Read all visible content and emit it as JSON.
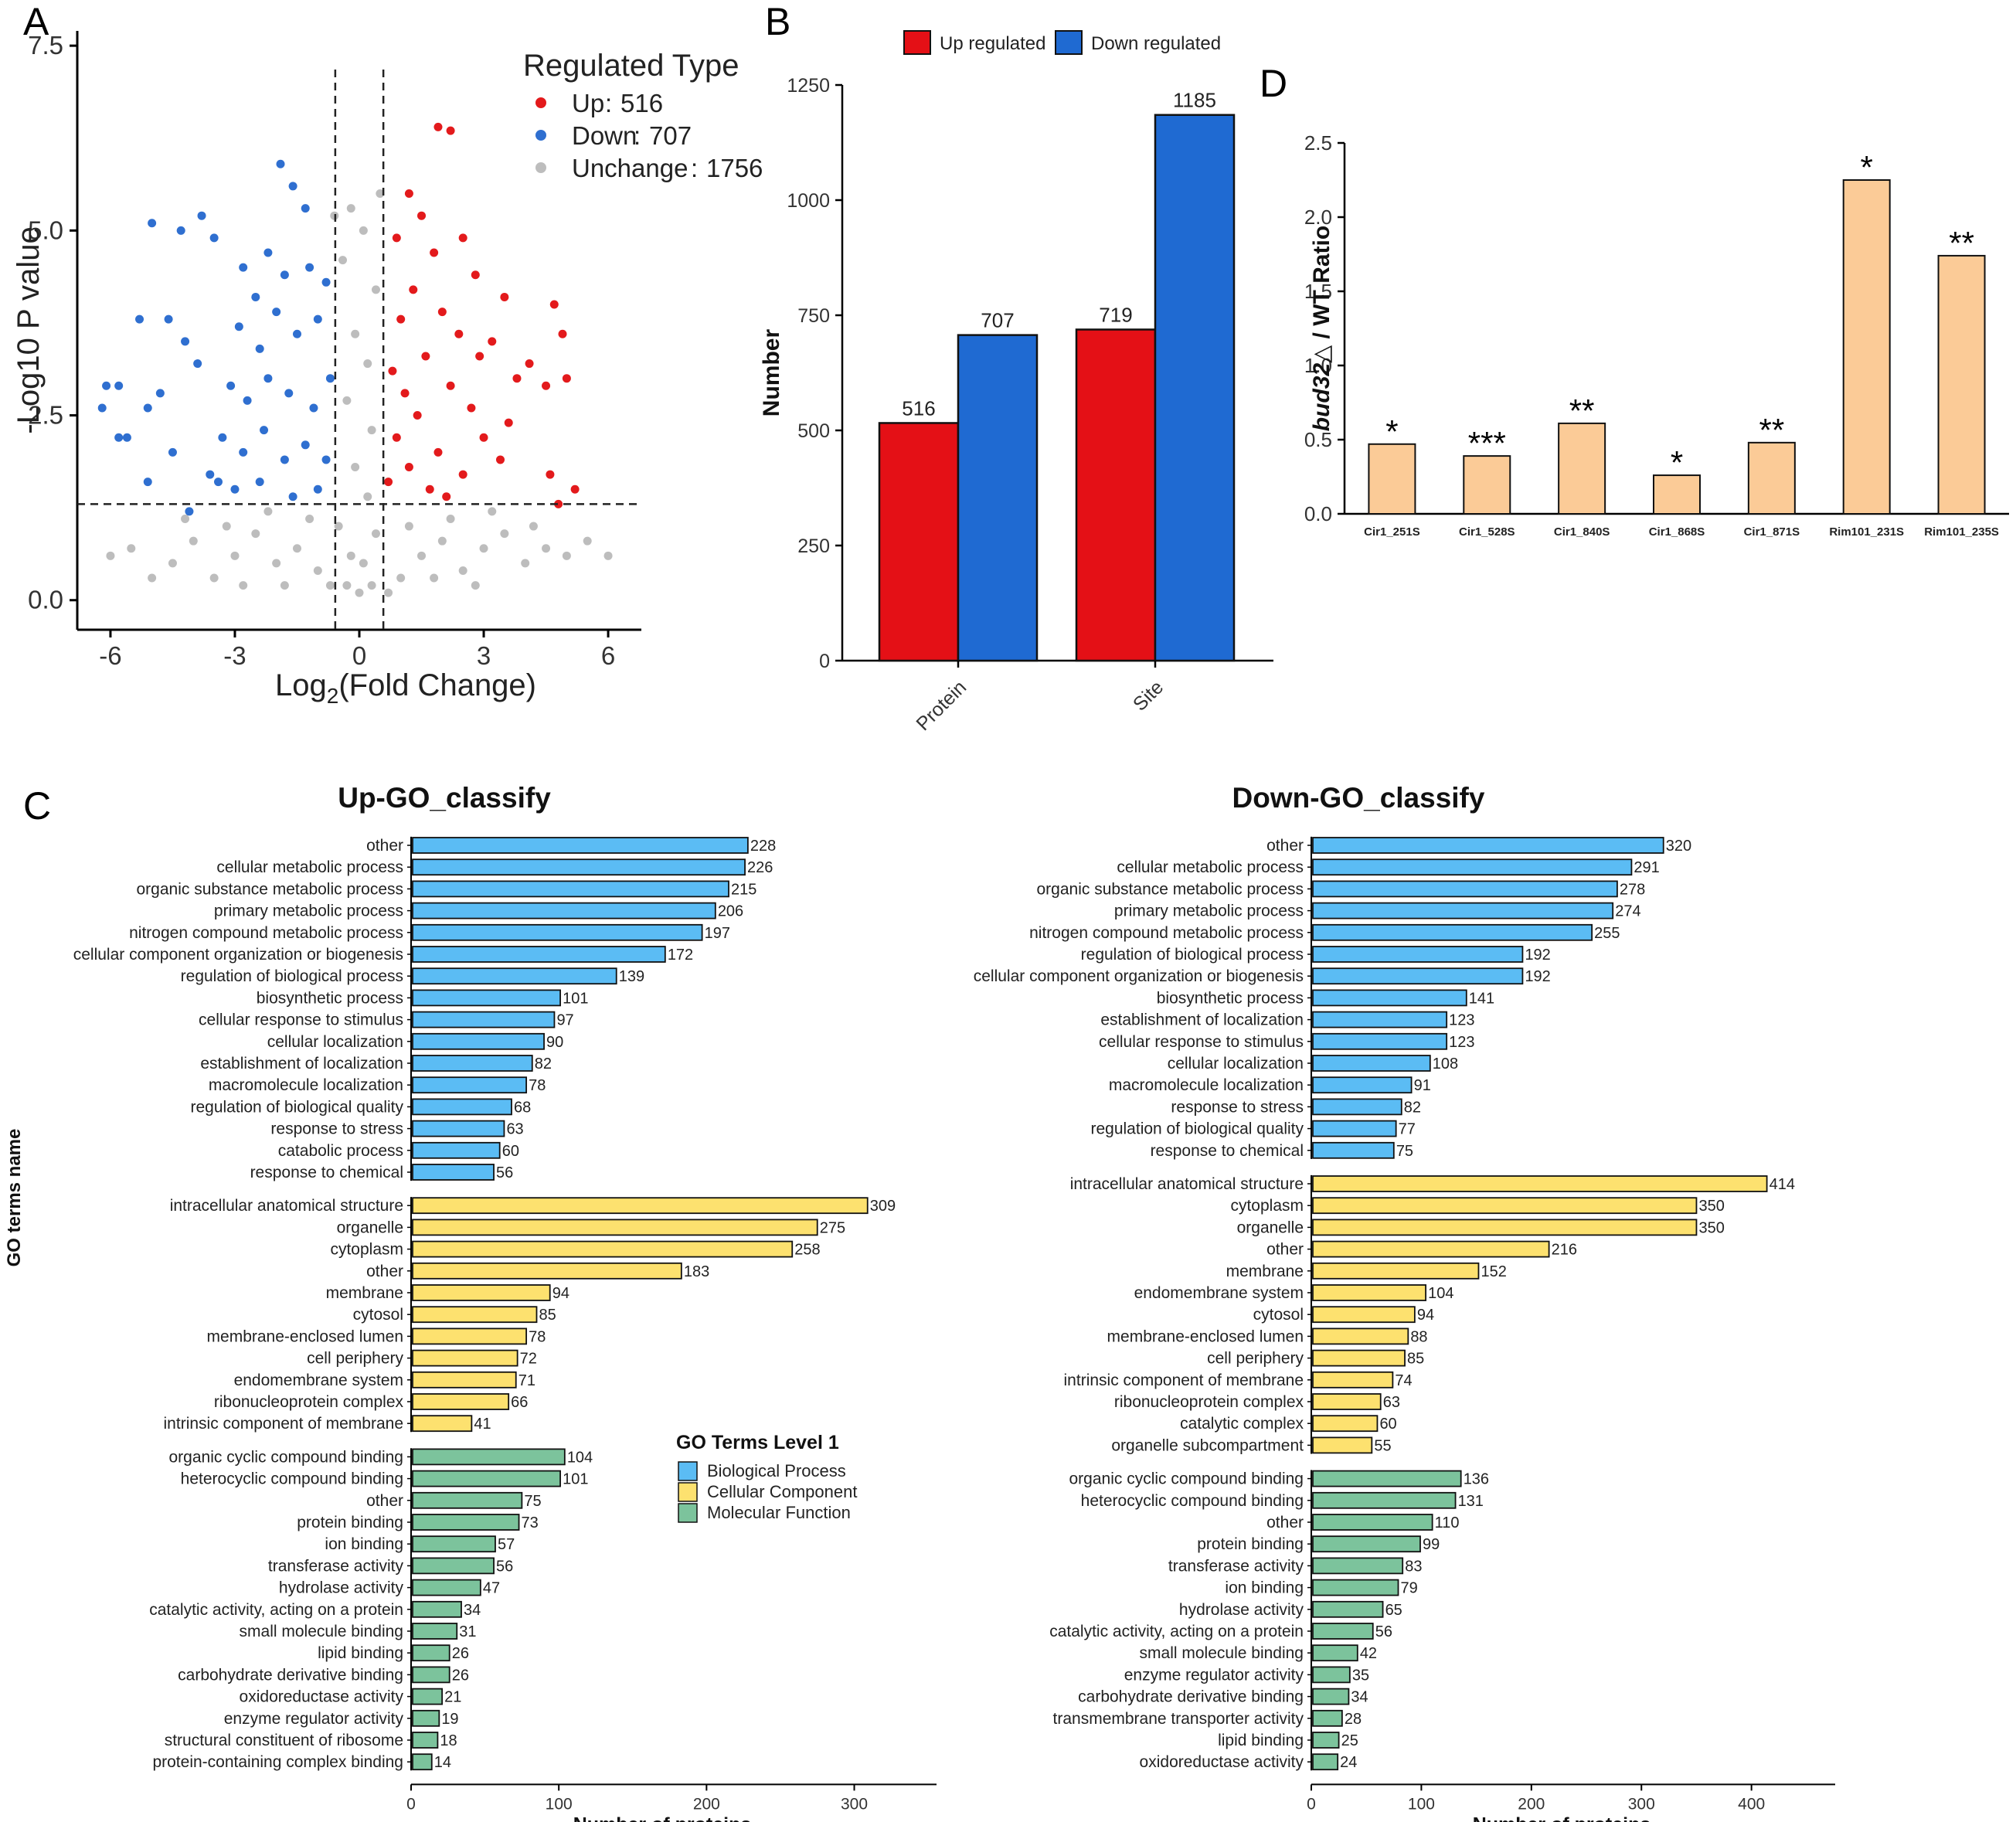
{
  "panels": {
    "a": "A",
    "b": "B",
    "c": "C",
    "d": "D"
  },
  "chart_data": [
    {
      "id": "A",
      "type": "scatter",
      "subtype": "volcano",
      "xlabel_main": "Log",
      "xlabel_sub": "2",
      "xlabel_rest": "(Fold Change)",
      "ylabel": "-Log10 P value",
      "xlim": [
        -6.8,
        6.8
      ],
      "ylim": [
        -0.4,
        7.7
      ],
      "xticks": [
        -6,
        -3,
        0,
        3,
        6
      ],
      "xtick_labels": [
        "-6",
        "-3",
        "0",
        "3",
        "6"
      ],
      "yticks": [
        0,
        2.5,
        5,
        7.5
      ],
      "ytick_labels": [
        "0.0",
        "2.5",
        "5.0",
        "7.5"
      ],
      "thresholds": {
        "log2fc": [
          -0.58,
          0.58
        ],
        "neg_log10_p": 1.3
      },
      "legend": {
        "title": "Regulated Type",
        "position": "top-right",
        "entries": [
          {
            "label": "Up",
            "sep": ":",
            "count": "516",
            "color": "#e31a1c"
          },
          {
            "label": "Down",
            "sep": ":",
            "count": "707",
            "color": "#2f6fd0"
          },
          {
            "label": "Unchange",
            "sep": ":",
            "count": "1756",
            "color": "#bdbdbd"
          }
        ]
      },
      "series": [
        {
          "name": "Up",
          "color": "#e31a1c",
          "points": [
            [
              1.9,
              6.4
            ],
            [
              2.2,
              6.35
            ],
            [
              1.2,
              5.5
            ],
            [
              1.5,
              5.2
            ],
            [
              2.5,
              4.9
            ],
            [
              0.9,
              4.9
            ],
            [
              1.8,
              4.7
            ],
            [
              2.8,
              4.4
            ],
            [
              3.5,
              4.1
            ],
            [
              4.7,
              4.0
            ],
            [
              4.9,
              3.6
            ],
            [
              3.2,
              3.5
            ],
            [
              4.1,
              3.2
            ],
            [
              3.8,
              3.0
            ],
            [
              4.5,
              2.9
            ],
            [
              5.0,
              3.0
            ],
            [
              2.7,
              2.6
            ],
            [
              3.6,
              2.4
            ],
            [
              4.6,
              1.7
            ],
            [
              5.2,
              1.5
            ],
            [
              4.8,
              1.3
            ],
            [
              1.3,
              4.2
            ],
            [
              1.0,
              3.8
            ],
            [
              2.0,
              3.9
            ],
            [
              2.4,
              3.6
            ],
            [
              1.6,
              3.3
            ],
            [
              2.9,
              3.3
            ],
            [
              0.8,
              3.1
            ],
            [
              1.1,
              2.8
            ],
            [
              2.2,
              2.9
            ],
            [
              1.4,
              2.5
            ],
            [
              3.0,
              2.2
            ],
            [
              1.9,
              2.0
            ],
            [
              0.9,
              2.2
            ],
            [
              1.2,
              1.8
            ],
            [
              2.5,
              1.7
            ],
            [
              3.4,
              1.9
            ],
            [
              1.7,
              1.5
            ],
            [
              0.7,
              1.6
            ],
            [
              2.1,
              1.4
            ]
          ]
        },
        {
          "name": "Down",
          "color": "#2f6fd0",
          "points": [
            [
              -5.0,
              5.1
            ],
            [
              -4.3,
              5.0
            ],
            [
              -3.8,
              5.2
            ],
            [
              -3.5,
              4.9
            ],
            [
              -1.9,
              5.9
            ],
            [
              -1.6,
              5.6
            ],
            [
              -1.3,
              5.3
            ],
            [
              -5.3,
              3.8
            ],
            [
              -4.6,
              3.8
            ],
            [
              -4.2,
              3.5
            ],
            [
              -3.9,
              3.2
            ],
            [
              -5.8,
              2.9
            ],
            [
              -4.8,
              2.8
            ],
            [
              -5.1,
              2.6
            ],
            [
              -6.1,
              2.9
            ],
            [
              -6.2,
              2.6
            ],
            [
              -5.6,
              2.2
            ],
            [
              -5.8,
              2.2
            ],
            [
              -4.5,
              2.0
            ],
            [
              -3.6,
              1.7
            ],
            [
              -3.4,
              1.6
            ],
            [
              -5.1,
              1.6
            ],
            [
              -4.1,
              1.2
            ],
            [
              -2.8,
              4.5
            ],
            [
              -2.5,
              4.1
            ],
            [
              -2.2,
              4.7
            ],
            [
              -1.8,
              4.4
            ],
            [
              -1.2,
              4.5
            ],
            [
              -0.8,
              4.3
            ],
            [
              -2.9,
              3.7
            ],
            [
              -2.4,
              3.4
            ],
            [
              -2.0,
              3.9
            ],
            [
              -1.5,
              3.6
            ],
            [
              -1.0,
              3.8
            ],
            [
              -3.1,
              2.9
            ],
            [
              -2.7,
              2.7
            ],
            [
              -2.2,
              3.0
            ],
            [
              -1.7,
              2.8
            ],
            [
              -1.1,
              2.6
            ],
            [
              -0.7,
              3.0
            ],
            [
              -3.3,
              2.2
            ],
            [
              -2.8,
              2.0
            ],
            [
              -2.3,
              2.3
            ],
            [
              -1.8,
              1.9
            ],
            [
              -1.3,
              2.1
            ],
            [
              -0.8,
              1.9
            ],
            [
              -3.0,
              1.5
            ],
            [
              -2.4,
              1.6
            ],
            [
              -1.6,
              1.4
            ],
            [
              -1.0,
              1.5
            ]
          ]
        },
        {
          "name": "Unchange",
          "color": "#bdbdbd",
          "points": [
            [
              0.0,
              0.1
            ],
            [
              0.3,
              0.2
            ],
            [
              -0.3,
              0.2
            ],
            [
              0.1,
              0.5
            ],
            [
              -0.2,
              0.6
            ],
            [
              0.4,
              0.9
            ],
            [
              -0.5,
              1.0
            ],
            [
              0.2,
              1.4
            ],
            [
              -0.1,
              1.8
            ],
            [
              0.3,
              2.3
            ],
            [
              -0.3,
              2.7
            ],
            [
              0.2,
              3.2
            ],
            [
              -0.1,
              3.6
            ],
            [
              0.4,
              4.2
            ],
            [
              -0.4,
              4.6
            ],
            [
              0.1,
              5.0
            ],
            [
              -0.2,
              5.3
            ],
            [
              0.5,
              5.5
            ],
            [
              -0.6,
              5.2
            ],
            [
              -1.0,
              0.4
            ],
            [
              1.0,
              0.3
            ],
            [
              -1.5,
              0.7
            ],
            [
              1.5,
              0.6
            ],
            [
              -2.0,
              0.5
            ],
            [
              2.0,
              0.8
            ],
            [
              -2.5,
              0.9
            ],
            [
              2.5,
              0.4
            ],
            [
              -3.0,
              0.6
            ],
            [
              3.0,
              0.7
            ],
            [
              -3.5,
              0.3
            ],
            [
              3.5,
              0.9
            ],
            [
              -4.0,
              0.8
            ],
            [
              4.0,
              0.5
            ],
            [
              -4.5,
              0.5
            ],
            [
              4.5,
              0.7
            ],
            [
              -5.0,
              0.3
            ],
            [
              5.0,
              0.6
            ],
            [
              -5.5,
              0.7
            ],
            [
              5.5,
              0.8
            ],
            [
              -6.0,
              0.6
            ],
            [
              6.0,
              0.6
            ],
            [
              -1.2,
              1.1
            ],
            [
              1.2,
              1.0
            ],
            [
              -2.2,
              1.2
            ],
            [
              2.2,
              1.1
            ],
            [
              -3.2,
              1.0
            ],
            [
              3.2,
              1.2
            ],
            [
              -4.2,
              1.1
            ],
            [
              4.2,
              1.0
            ],
            [
              -0.7,
              0.2
            ],
            [
              0.7,
              0.1
            ],
            [
              -1.8,
              0.2
            ],
            [
              1.8,
              0.3
            ],
            [
              -2.8,
              0.2
            ],
            [
              2.8,
              0.2
            ]
          ]
        }
      ]
    },
    {
      "id": "B",
      "type": "bar",
      "categories": [
        "Protein",
        "Site"
      ],
      "series": [
        {
          "name": "Up regulated",
          "color": "#e41016",
          "values": [
            516,
            719
          ]
        },
        {
          "name": "Down regulated",
          "color": "#1f6ad2",
          "values": [
            707,
            1185
          ]
        }
      ],
      "ylabel": "Number",
      "xlabel": "",
      "ylim": [
        0,
        1250
      ],
      "yticks": [
        0,
        250,
        500,
        750,
        1000,
        1250
      ],
      "legend": "top"
    },
    {
      "id": "D",
      "type": "bar",
      "categories": [
        "Cir1_251S",
        "Cir1_528S",
        "Cir1_840S",
        "Cir1_868S",
        "Cir1_871S",
        "Rim101_231S",
        "Rim101_235S"
      ],
      "values": [
        0.47,
        0.39,
        0.61,
        0.26,
        0.48,
        2.25,
        1.74
      ],
      "significance": [
        "*",
        "***",
        "**",
        "*",
        "**",
        "*",
        "**"
      ],
      "color": "#fbcb97",
      "ylabel_italic": "bud32△",
      "ylabel_rest": " / WT Ratio",
      "ylim": [
        0,
        2.5
      ],
      "yticks": [
        0,
        0.5,
        1.0,
        1.5,
        2.0,
        2.5
      ],
      "ytick_labels": [
        "0.0",
        "0.5",
        "1.0",
        "1.5",
        "2.0",
        "2.5"
      ]
    },
    {
      "id": "C-up",
      "type": "bar",
      "orientation": "horizontal",
      "title": "Up-GO_classify",
      "ylabel": "GO terms name",
      "xlabel": "Number of proteins",
      "xlim": [
        0,
        340
      ],
      "xticks": [
        0,
        100,
        200,
        300
      ],
      "groups": [
        {
          "name": "Biological Process",
          "color": "#5bbcf4",
          "categories": [
            "other",
            "cellular metabolic process",
            "organic substance metabolic process",
            "primary metabolic process",
            "nitrogen compound metabolic process",
            "cellular component organization or biogenesis",
            "regulation of biological process",
            "biosynthetic process",
            "cellular response to stimulus",
            "cellular localization",
            "establishment of localization",
            "macromolecule localization",
            "regulation of biological quality",
            "response to stress",
            "catabolic process",
            "response to chemical"
          ],
          "values": [
            228,
            226,
            215,
            206,
            197,
            172,
            139,
            101,
            97,
            90,
            82,
            78,
            68,
            63,
            60,
            56
          ]
        },
        {
          "name": "Cellular Component",
          "color": "#fde16f",
          "categories": [
            "intracellular anatomical structure",
            "organelle",
            "cytoplasm",
            "other",
            "membrane",
            "cytosol",
            "membrane-enclosed lumen",
            "cell periphery",
            "endomembrane system",
            "ribonucleoprotein complex",
            "intrinsic component of membrane"
          ],
          "values": [
            309,
            275,
            258,
            183,
            94,
            85,
            78,
            72,
            71,
            66,
            41
          ]
        },
        {
          "name": "Molecular Function",
          "color": "#7cc39c",
          "categories": [
            "organic cyclic compound binding",
            "heterocyclic compound binding",
            "other",
            "protein binding",
            "ion binding",
            "transferase activity",
            "hydrolase activity",
            "catalytic activity, acting on a protein",
            "small molecule binding",
            "lipid binding",
            "carbohydrate derivative binding",
            "oxidoreductase activity",
            "enzyme regulator activity",
            "structural constituent of ribosome",
            "protein-containing complex binding"
          ],
          "values": [
            104,
            101,
            75,
            73,
            57,
            56,
            47,
            34,
            31,
            26,
            26,
            21,
            19,
            18,
            14
          ]
        }
      ],
      "legend": {
        "title": "GO Terms Level 1",
        "entries": [
          {
            "label": "Biological Process",
            "color": "#5bbcf4"
          },
          {
            "label": "Cellular Component",
            "color": "#fde16f"
          },
          {
            "label": "Molecular Function",
            "color": "#7cc39c"
          }
        ]
      }
    },
    {
      "id": "C-down",
      "type": "bar",
      "orientation": "horizontal",
      "title": "Down-GO_classify",
      "xlabel": "Number of proteins",
      "xlim": [
        0,
        455
      ],
      "xticks": [
        0,
        100,
        200,
        300,
        400
      ],
      "groups": [
        {
          "name": "Biological Process",
          "color": "#5bbcf4",
          "categories": [
            "other",
            "cellular metabolic process",
            "organic substance metabolic process",
            "primary metabolic process",
            "nitrogen compound metabolic process",
            "regulation of biological process",
            "cellular component organization or biogenesis",
            "biosynthetic process",
            "establishment of localization",
            "cellular response to stimulus",
            "cellular localization",
            "macromolecule localization",
            "response to stress",
            "regulation of biological quality",
            "response to chemical"
          ],
          "values": [
            320,
            291,
            278,
            274,
            255,
            192,
            192,
            141,
            123,
            123,
            108,
            91,
            82,
            77,
            75
          ]
        },
        {
          "name": "Cellular Component",
          "color": "#fde16f",
          "categories": [
            "intracellular anatomical structure",
            "cytoplasm",
            "organelle",
            "other",
            "membrane",
            "endomembrane system",
            "cytosol",
            "membrane-enclosed lumen",
            "cell periphery",
            "intrinsic component of membrane",
            "ribonucleoprotein complex",
            "catalytic complex",
            "organelle subcompartment"
          ],
          "values": [
            414,
            350,
            350,
            216,
            152,
            104,
            94,
            88,
            85,
            74,
            63,
            60,
            55
          ]
        },
        {
          "name": "Molecular Function",
          "color": "#7cc39c",
          "categories": [
            "organic cyclic compound binding",
            "heterocyclic compound binding",
            "other",
            "protein binding",
            "transferase activity",
            "ion binding",
            "hydrolase activity",
            "catalytic activity, acting on a protein",
            "small molecule binding",
            "enzyme regulator activity",
            "carbohydrate derivative binding",
            "transmembrane transporter activity",
            "lipid binding",
            "oxidoreductase activity"
          ],
          "values": [
            136,
            131,
            110,
            99,
            83,
            79,
            65,
            56,
            42,
            35,
            34,
            28,
            25,
            24
          ]
        }
      ]
    }
  ]
}
